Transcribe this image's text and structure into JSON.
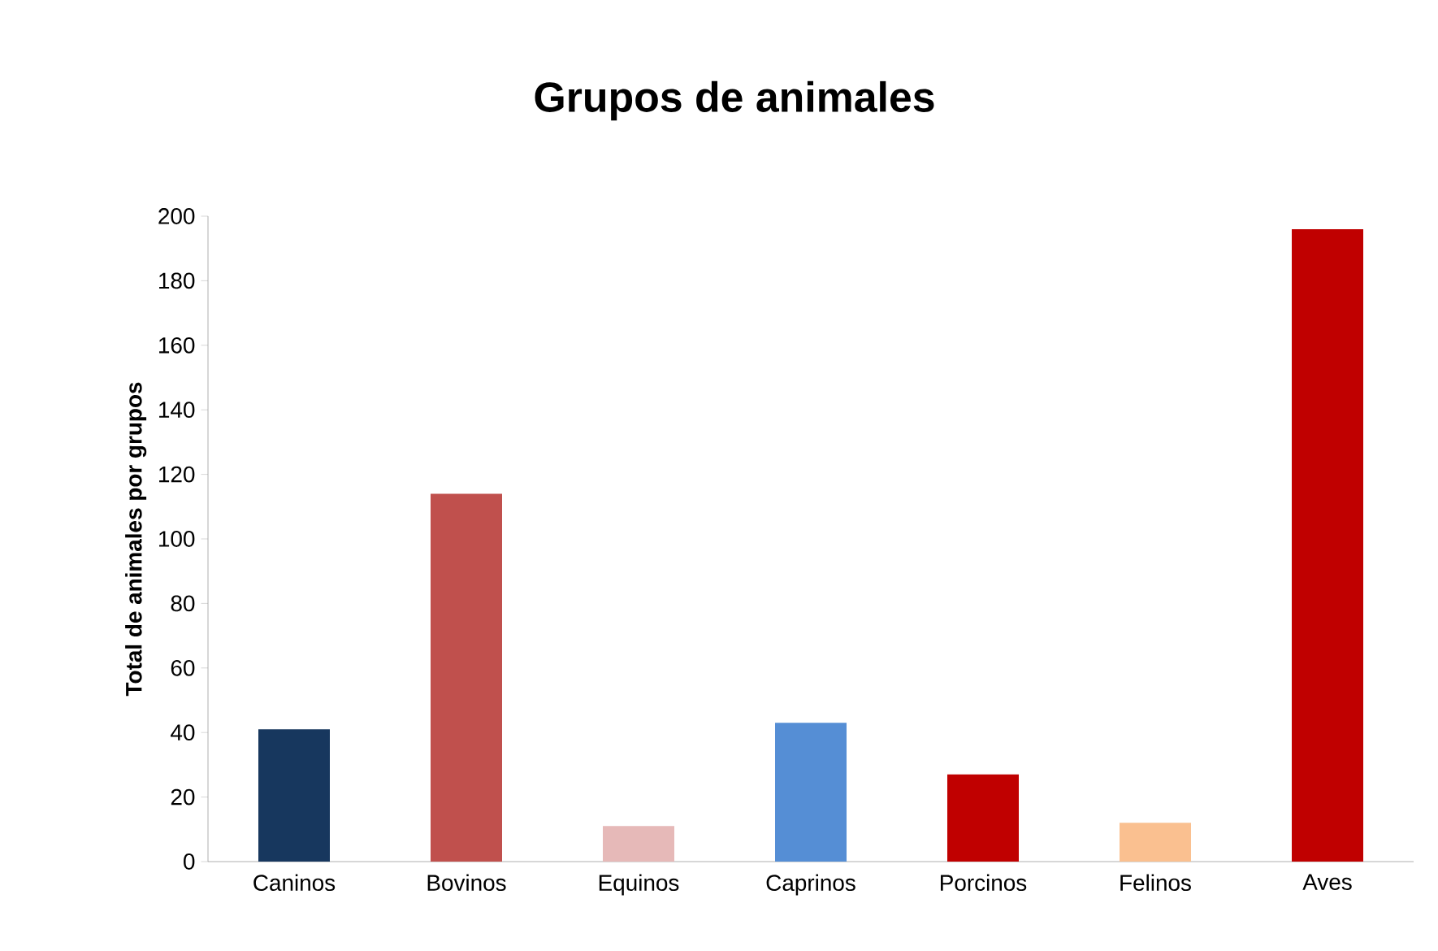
{
  "chart_data": {
    "type": "bar",
    "title": "Grupos de animales",
    "ylabel": "Total de animales por grupos",
    "categories": [
      "Caninos",
      "Bovinos",
      "Equinos",
      "Caprinos",
      "Porcinos",
      "Felinos",
      "Aves"
    ],
    "values": [
      41,
      114,
      11,
      43,
      27,
      12,
      196
    ],
    "colors": [
      "#17375e",
      "#c0504d",
      "#e6b9b8",
      "#558ed5",
      "#c00000",
      "#fac090",
      "#c00000"
    ],
    "ylim": [
      0,
      200
    ],
    "yticks": [
      0,
      20,
      40,
      60,
      80,
      100,
      120,
      140,
      160,
      180,
      200
    ],
    "grid": false
  }
}
